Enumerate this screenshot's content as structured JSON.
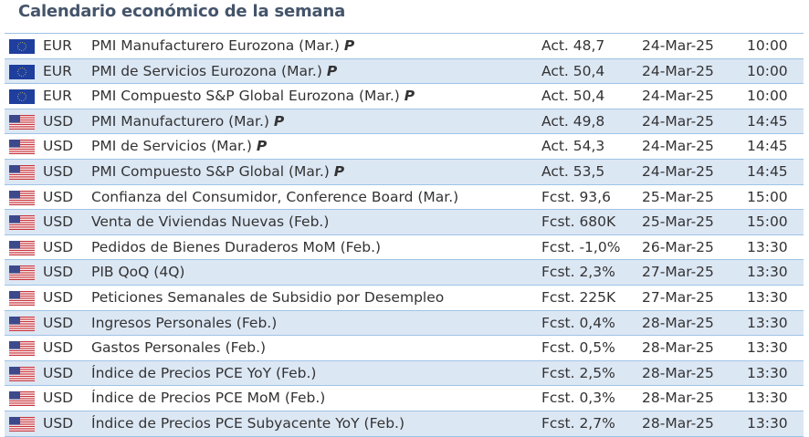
{
  "title": "Calendario económico de la semana",
  "colors": {
    "title": "#44546a",
    "alt_row": "#dce7f4",
    "border": "#9dc3e6"
  },
  "rows": [
    {
      "flag": "eu-flag-icon",
      "currency": "EUR",
      "event": "PMI Manufacturero Eurozona (Mar.)",
      "mark": "P",
      "value": "Act. 48,7",
      "date": "24-Mar-25",
      "time": "10:00"
    },
    {
      "flag": "eu-flag-icon",
      "currency": "EUR",
      "event": "PMI de Servicios Eurozona (Mar.)",
      "mark": "P",
      "value": "Act. 50,4",
      "date": "24-Mar-25",
      "time": "10:00"
    },
    {
      "flag": "eu-flag-icon",
      "currency": "EUR",
      "event": "PMI Compuesto S&P Global Eurozona (Mar.)",
      "mark": "P",
      "value": "Act. 50,4",
      "date": "24-Mar-25",
      "time": "10:00"
    },
    {
      "flag": "us-flag-icon",
      "currency": "USD",
      "event": "PMI Manufacturero (Mar.)",
      "mark": "P",
      "value": "Act. 49,8",
      "date": "24-Mar-25",
      "time": "14:45"
    },
    {
      "flag": "us-flag-icon",
      "currency": "USD",
      "event": "PMI de Servicios (Mar.)",
      "mark": "P",
      "value": "Act. 54,3",
      "date": "24-Mar-25",
      "time": "14:45"
    },
    {
      "flag": "us-flag-icon",
      "currency": "USD",
      "event": "PMI Compuesto S&P Global (Mar.)",
      "mark": "P",
      "value": "Act. 53,5",
      "date": "24-Mar-25",
      "time": "14:45"
    },
    {
      "flag": "us-flag-icon",
      "currency": "USD",
      "event": "Confianza del Consumidor, Conference Board (Mar.)",
      "mark": "",
      "value": "Fcst. 93,6",
      "date": "25-Mar-25",
      "time": "15:00"
    },
    {
      "flag": "us-flag-icon",
      "currency": "USD",
      "event": "Venta de Viviendas Nuevas (Feb.)",
      "mark": "",
      "value": "Fcst. 680K",
      "date": "25-Mar-25",
      "time": "15:00"
    },
    {
      "flag": "us-flag-icon",
      "currency": "USD",
      "event": "Pedidos de Bienes Duraderos MoM (Feb.)",
      "mark": "",
      "value": "Fcst. -1,0%",
      "date": "26-Mar-25",
      "time": "13:30"
    },
    {
      "flag": "us-flag-icon",
      "currency": "USD",
      "event": "PIB QoQ (4Q)",
      "mark": "",
      "value": "Fcst. 2,3%",
      "date": "27-Mar-25",
      "time": "13:30"
    },
    {
      "flag": "us-flag-icon",
      "currency": "USD",
      "event": "Peticiones Semanales de Subsidio por Desempleo",
      "mark": "",
      "value": "Fcst. 225K",
      "date": "27-Mar-25",
      "time": "13:30"
    },
    {
      "flag": "us-flag-icon",
      "currency": "USD",
      "event": "Ingresos Personales (Feb.)",
      "mark": "",
      "value": "Fcst. 0,4%",
      "date": "28-Mar-25",
      "time": "13:30"
    },
    {
      "flag": "us-flag-icon",
      "currency": "USD",
      "event": "Gastos Personales (Feb.)",
      "mark": "",
      "value": "Fcst. 0,5%",
      "date": "28-Mar-25",
      "time": "13:30"
    },
    {
      "flag": "us-flag-icon",
      "currency": "USD",
      "event": "Índice de Precios PCE YoY (Feb.)",
      "mark": "",
      "value": "Fcst. 2,5%",
      "date": "28-Mar-25",
      "time": "13:30"
    },
    {
      "flag": "us-flag-icon",
      "currency": "USD",
      "event": "Índice de Precios PCE MoM (Feb.)",
      "mark": "",
      "value": "Fcst. 0,3%",
      "date": "28-Mar-25",
      "time": "13:30"
    },
    {
      "flag": "us-flag-icon",
      "currency": "USD",
      "event": "Índice de Precios PCE Subyacente YoY (Feb.)",
      "mark": "",
      "value": "Fcst. 2,7%",
      "date": "28-Mar-25",
      "time": "13:30"
    }
  ]
}
